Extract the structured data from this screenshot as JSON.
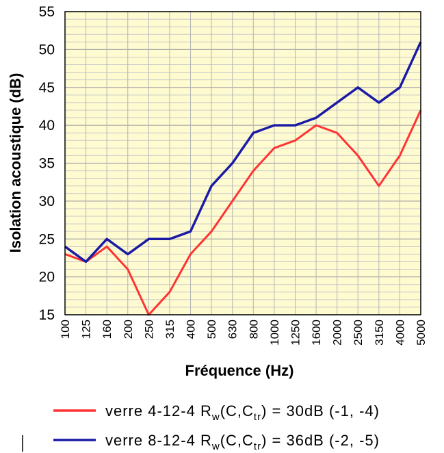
{
  "chart_data": {
    "type": "line",
    "xlabel": "Fréquence (Hz)",
    "ylabel": "Isolation acoustique (dB)",
    "ylim": [
      15,
      55
    ],
    "yticks": [
      15,
      20,
      25,
      30,
      35,
      40,
      45,
      50,
      55
    ],
    "grid": true,
    "legend_placement": "bottom",
    "categories": [
      "100",
      "125",
      "160",
      "200",
      "250",
      "315",
      "400",
      "500",
      "630",
      "800",
      "1000",
      "1250",
      "1600",
      "2000",
      "2500",
      "3150",
      "4000",
      "5000"
    ],
    "series": [
      {
        "name": "verre 4-12-4 Rw(C,Ctr) = 30dB (-1, -4)",
        "legend_parts": {
          "pre": "verre 4-12-4 R",
          "sub1": "w",
          "mid": "(C,C",
          "sub2": "tr",
          "post": ") = 30dB (-1, -4)"
        },
        "color": "#ff3333",
        "values": [
          23,
          22,
          24,
          21,
          15,
          18,
          23,
          26,
          30,
          34,
          37,
          38,
          40,
          39,
          36,
          32,
          36,
          42
        ]
      },
      {
        "name": "verre 8-12-4 Rw(C,Ctr) = 36dB (-2, -5)",
        "legend_parts": {
          "pre": "verre 8-12-4 R",
          "sub1": "w",
          "mid": "(C,C",
          "sub2": "tr",
          "post": ") = 36dB (-2, -5)"
        },
        "color": "#1a1aa6",
        "values": [
          24,
          22,
          25,
          23,
          25,
          25,
          26,
          32,
          35,
          39,
          40,
          40,
          41,
          43,
          45,
          43,
          45,
          51
        ]
      }
    ],
    "colors": {
      "plot_background": "#fffbd0",
      "grid": "#c8c8c8",
      "axis": "#000000"
    }
  }
}
